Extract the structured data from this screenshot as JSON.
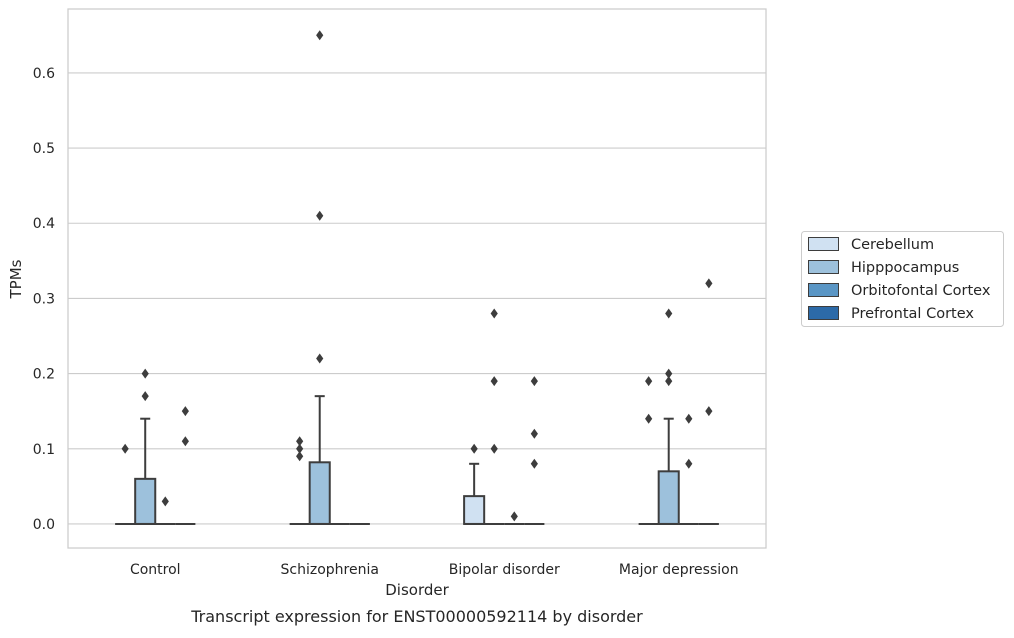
{
  "chart_data": {
    "type": "box",
    "xlabel": "Disorder",
    "ylabel": "TPMs",
    "caption": "Transcript expression for ENST00000592114 by disorder",
    "categories": [
      "Control",
      "Schizophrenia",
      "Bipolar disorder",
      "Major depression"
    ],
    "ylim": [
      -0.032,
      0.685
    ],
    "yticks": [
      0.0,
      0.1,
      0.2,
      0.3,
      0.4,
      0.5,
      0.6
    ],
    "ytick_labels": [
      "0.0",
      "0.1",
      "0.2",
      "0.3",
      "0.4",
      "0.5",
      "0.6"
    ],
    "grid": "horizontal",
    "legend_position": "right",
    "series": [
      {
        "name": "Cerebellum",
        "color": "#d0e1f2",
        "boxes": [
          {
            "q1": 0,
            "median": 0,
            "q3": 0,
            "whisker_low": 0,
            "whisker_high": 0,
            "outliers": [
              0.1
            ]
          },
          {
            "q1": 0,
            "median": 0,
            "q3": 0,
            "whisker_low": 0,
            "whisker_high": 0,
            "outliers": [
              0.09,
              0.1,
              0.11
            ]
          },
          {
            "q1": 0,
            "median": 0,
            "q3": 0.037,
            "whisker_low": 0,
            "whisker_high": 0.08,
            "outliers": [
              0.1
            ]
          },
          {
            "q1": 0,
            "median": 0,
            "q3": 0,
            "whisker_low": 0,
            "whisker_high": 0,
            "outliers": [
              0.14,
              0.19
            ]
          }
        ]
      },
      {
        "name": "Hipppocampus",
        "color": "#9dc1dc",
        "boxes": [
          {
            "q1": 0,
            "median": 0,
            "q3": 0.06,
            "whisker_low": 0,
            "whisker_high": 0.14,
            "outliers": [
              0.17,
              0.2
            ]
          },
          {
            "q1": 0,
            "median": 0,
            "q3": 0.082,
            "whisker_low": 0,
            "whisker_high": 0.17,
            "outliers": [
              0.22,
              0.41,
              0.65
            ]
          },
          {
            "q1": 0,
            "median": 0,
            "q3": 0,
            "whisker_low": 0,
            "whisker_high": 0,
            "outliers": [
              0.1,
              0.19,
              0.28
            ]
          },
          {
            "q1": 0,
            "median": 0,
            "q3": 0.07,
            "whisker_low": 0,
            "whisker_high": 0.14,
            "outliers": [
              0.19,
              0.2,
              0.28
            ]
          }
        ]
      },
      {
        "name": "Orbitofontal Cortex",
        "color": "#5a96c5",
        "boxes": [
          {
            "q1": 0,
            "median": 0,
            "q3": 0,
            "whisker_low": 0,
            "whisker_high": 0,
            "outliers": [
              0.03
            ]
          },
          {
            "q1": 0,
            "median": 0,
            "q3": 0,
            "whisker_low": 0,
            "whisker_high": 0,
            "outliers": []
          },
          {
            "q1": 0,
            "median": 0,
            "q3": 0,
            "whisker_low": 0,
            "whisker_high": 0,
            "outliers": [
              0.01
            ]
          },
          {
            "q1": 0,
            "median": 0,
            "q3": 0,
            "whisker_low": 0,
            "whisker_high": 0,
            "outliers": [
              0.08,
              0.14
            ]
          }
        ]
      },
      {
        "name": "Prefrontal Cortex",
        "color": "#2c6aa8",
        "boxes": [
          {
            "q1": 0,
            "median": 0,
            "q3": 0,
            "whisker_low": 0,
            "whisker_high": 0,
            "outliers": [
              0.11,
              0.15
            ]
          },
          {
            "q1": 0,
            "median": 0,
            "q3": 0,
            "whisker_low": 0,
            "whisker_high": 0,
            "outliers": []
          },
          {
            "q1": 0,
            "median": 0,
            "q3": 0,
            "whisker_low": 0,
            "whisker_high": 0,
            "outliers": [
              0.08,
              0.12,
              0.19
            ]
          },
          {
            "q1": 0,
            "median": 0,
            "q3": 0,
            "whisker_low": 0,
            "whisker_high": 0,
            "outliers": [
              0.15,
              0.32
            ]
          }
        ]
      }
    ]
  }
}
